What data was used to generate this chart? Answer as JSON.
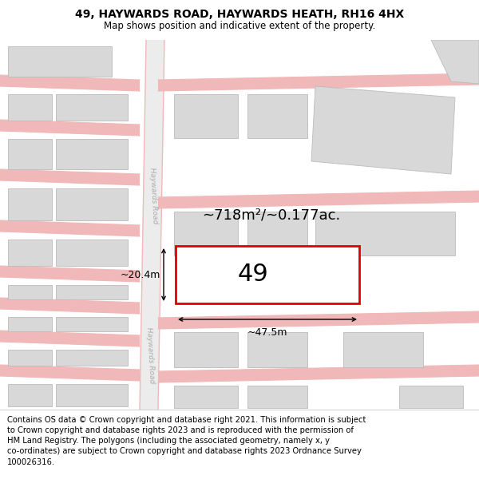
{
  "title": "49, HAYWARDS ROAD, HAYWARDS HEATH, RH16 4HX",
  "subtitle": "Map shows position and indicative extent of the property.",
  "footer": "Contains OS data © Crown copyright and database right 2021. This information is subject\nto Crown copyright and database rights 2023 and is reproduced with the permission of\nHM Land Registry. The polygons (including the associated geometry, namely x, y\nco-ordinates) are subject to Crown copyright and database rights 2023 Ordnance Survey\n100026316.",
  "background_color": "#ffffff",
  "road_fill": "#e8e8e8",
  "road_line": "#f0b8b8",
  "building_fill": "#d8d8d8",
  "building_edge": "#bbbbbb",
  "highlight_fill": "#ffffff",
  "highlight_edge": "#dd0000",
  "highlight_lw": 2.0,
  "label_49": "49",
  "area_text": "~718m²/~0.177ac.",
  "width_text": "~47.5m",
  "height_text": "~20.4m",
  "road_label_upper": "Haywards Road",
  "road_label_lower": "Haywards Road",
  "title_fontsize": 10,
  "subtitle_fontsize": 8.5,
  "footer_fontsize": 7.2,
  "area_fontsize": 13,
  "label_fontsize": 22,
  "dim_fontsize": 9
}
